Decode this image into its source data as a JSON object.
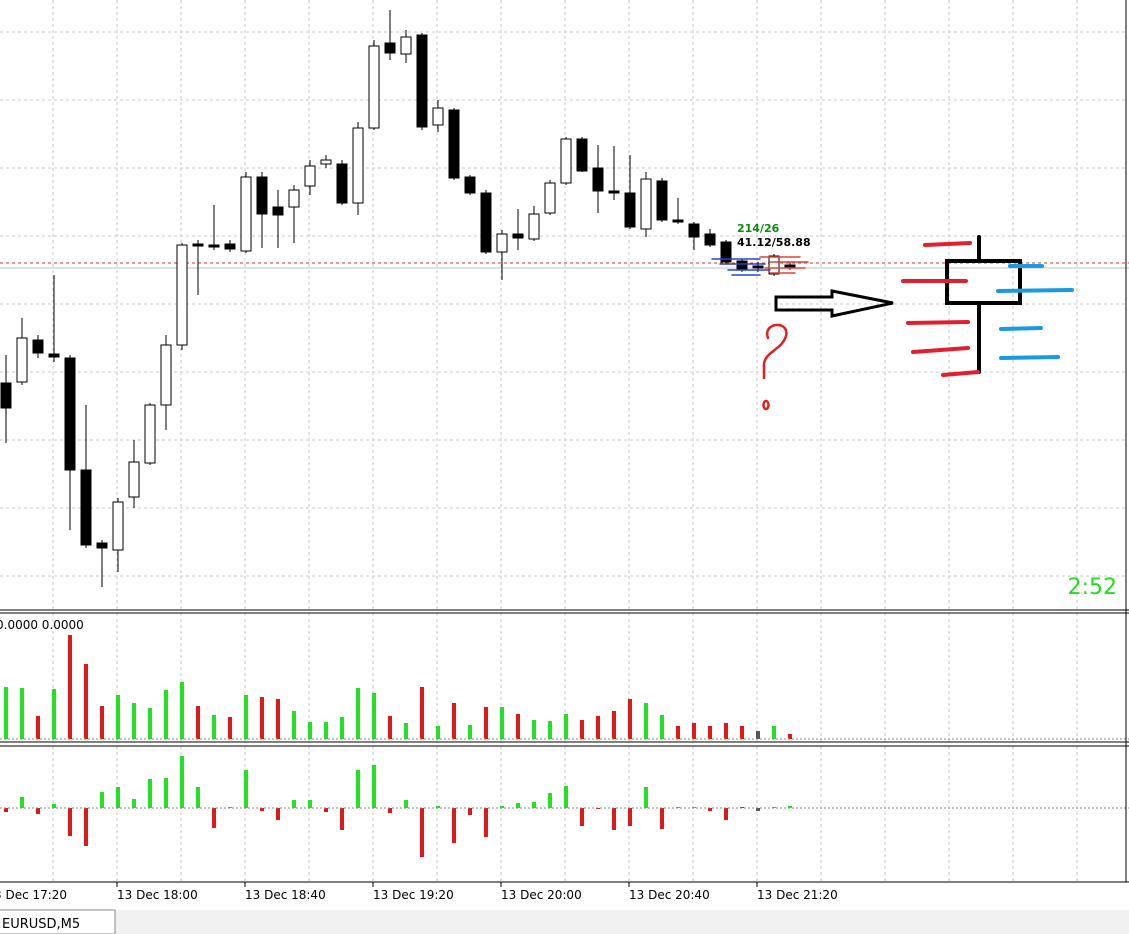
{
  "chart_header": "0.0000 0.0000",
  "tick_info": {
    "counts": "214/26",
    "ratio": "41.12/58.88"
  },
  "timer": "2:52",
  "time_axis": [
    "3 Dec 17:20",
    "13 Dec 18:00",
    "13 Dec 18:40",
    "13 Dec 19:20",
    "13 Dec 20:00",
    "13 Dec 20:40",
    "13 Dec 21:20"
  ],
  "tab": "EURUSD,M5"
}
